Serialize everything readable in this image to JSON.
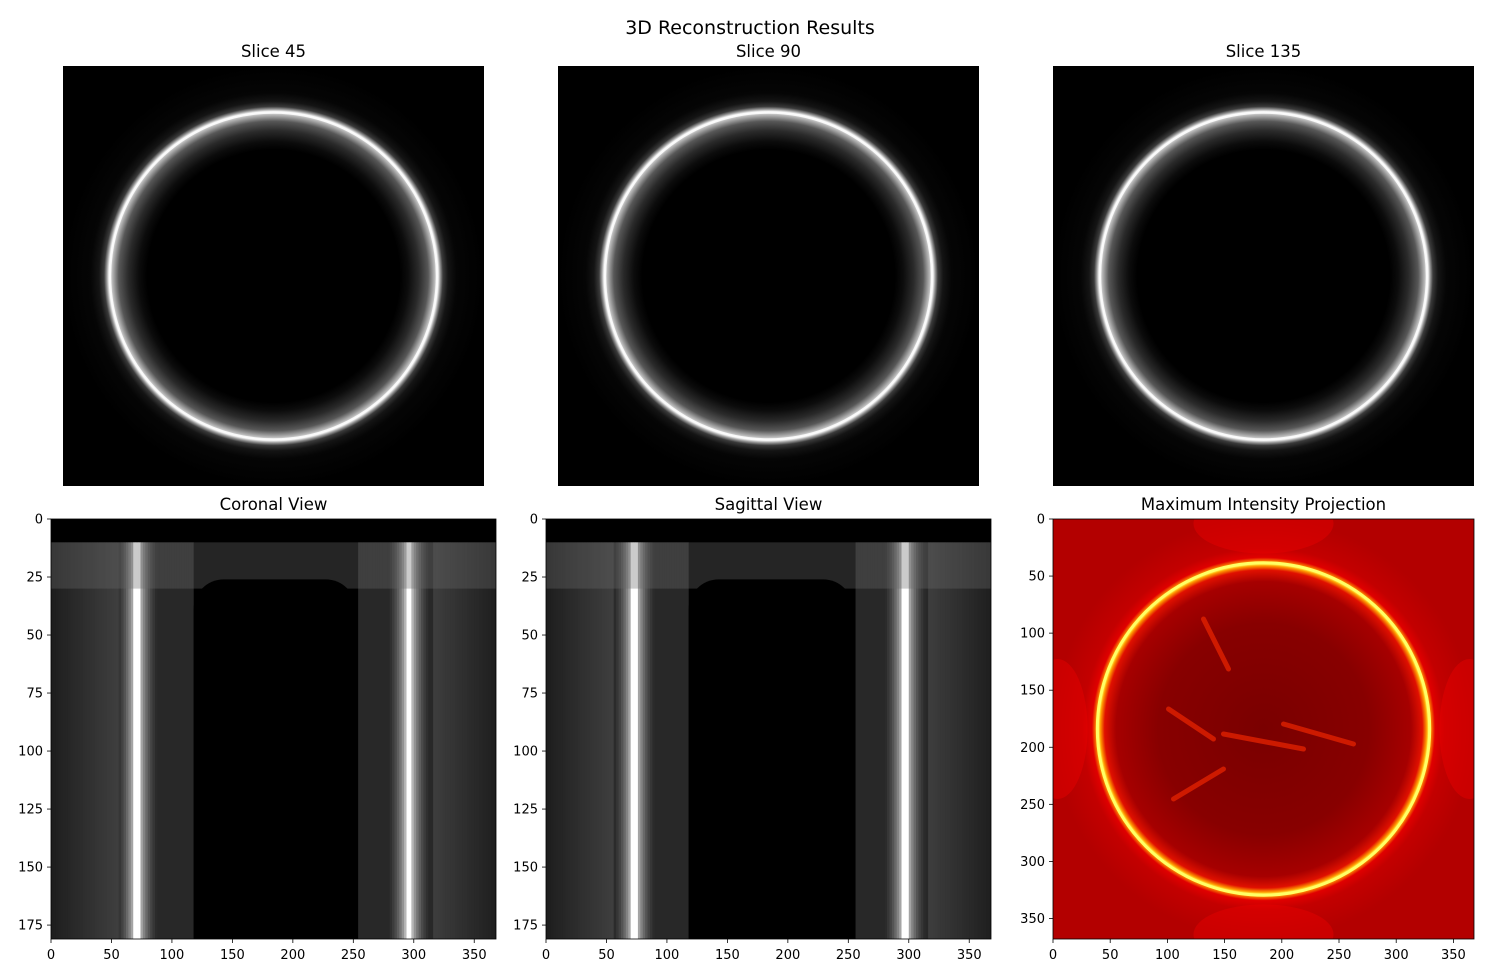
{
  "figure": {
    "suptitle": "3D Reconstruction Results",
    "background": "#ffffff"
  },
  "chart_data": [
    {
      "type": "heatmap",
      "title": "Slice 45",
      "colormap": "gray",
      "axes_visible": false,
      "content": "ring",
      "image_shape": [
        368,
        368
      ],
      "ring": {
        "center_x": 184,
        "center_y": 184,
        "outer_radius": 146,
        "bright_edge_radius": 140,
        "inner_dark_radius": 118
      }
    },
    {
      "type": "heatmap",
      "title": "Slice 90",
      "colormap": "gray",
      "axes_visible": false,
      "content": "ring",
      "image_shape": [
        368,
        368
      ],
      "ring": {
        "center_x": 184,
        "center_y": 184,
        "outer_radius": 146,
        "bright_edge_radius": 140,
        "inner_dark_radius": 118
      }
    },
    {
      "type": "heatmap",
      "title": "Slice 135",
      "colormap": "gray",
      "axes_visible": false,
      "content": "ring",
      "image_shape": [
        368,
        368
      ],
      "ring": {
        "center_x": 184,
        "center_y": 184,
        "outer_radius": 146,
        "bright_edge_radius": 140,
        "inner_dark_radius": 118
      }
    },
    {
      "type": "heatmap",
      "title": "Coronal View",
      "colormap": "gray",
      "axes_visible": true,
      "content": "columns",
      "xlim": [
        0,
        368
      ],
      "ylim": [
        181,
        0
      ],
      "x_ticks": [
        0,
        50,
        100,
        150,
        200,
        250,
        300,
        350
      ],
      "y_ticks": [
        0,
        25,
        50,
        75,
        100,
        125,
        150,
        175
      ],
      "bright_columns_x": [
        70,
        295
      ],
      "dark_region": {
        "x_start": 118,
        "x_end": 252,
        "y_start": 26
      },
      "empty_band_y": [
        0,
        10
      ]
    },
    {
      "type": "heatmap",
      "title": "Sagittal View",
      "colormap": "gray",
      "axes_visible": true,
      "content": "columns",
      "xlim": [
        0,
        368
      ],
      "ylim": [
        181,
        0
      ],
      "x_ticks": [
        0,
        50,
        100,
        150,
        200,
        250,
        300,
        350
      ],
      "y_ticks": [
        0,
        25,
        50,
        75,
        100,
        125,
        150,
        175
      ],
      "bright_columns_x": [
        72,
        296
      ],
      "dark_region": {
        "x_start": 118,
        "x_end": 254,
        "y_start": 26
      },
      "empty_band_y": [
        0,
        10
      ]
    },
    {
      "type": "heatmap",
      "title": "Maximum Intensity Projection",
      "colormap": "hot",
      "axes_visible": true,
      "content": "mip",
      "xlim": [
        0,
        368
      ],
      "ylim": [
        368,
        0
      ],
      "x_ticks": [
        0,
        50,
        100,
        150,
        200,
        250,
        300,
        350
      ],
      "y_ticks": [
        0,
        50,
        100,
        150,
        200,
        250,
        300,
        350
      ],
      "ring": {
        "center_x": 184,
        "center_y": 184,
        "radius": 146
      }
    }
  ]
}
